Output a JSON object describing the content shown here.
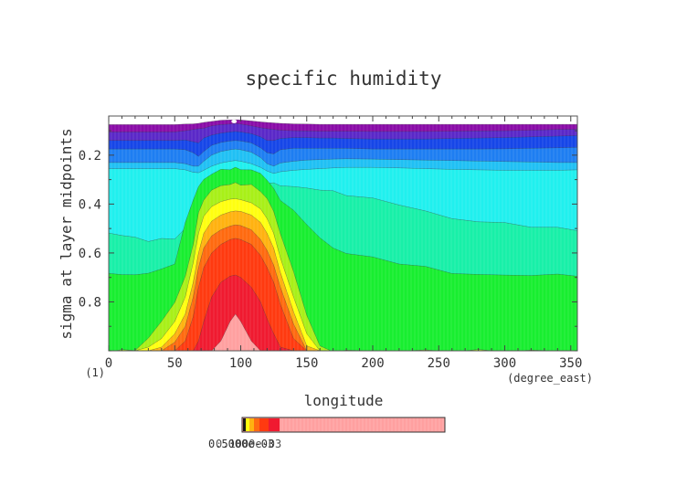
{
  "chart_data": {
    "type": "heatmap",
    "plot_style": "filled contour",
    "title": "specific humidity",
    "xlabel": "longitude",
    "x_units": "(degree_east)",
    "ylabel": "sigma at layer midpoints",
    "y_units": "(1)",
    "xlim": [
      0,
      355
    ],
    "ylim": [
      1.0,
      0.04
    ],
    "y_axis_inverted": true,
    "x_ticks": [
      0,
      50,
      100,
      150,
      200,
      250,
      300,
      350
    ],
    "y_ticks": [
      0.2,
      0.4,
      0.6,
      0.8
    ],
    "x_tick_labels": [
      "0",
      "50",
      "100",
      "150",
      "200",
      "250",
      "300",
      "350"
    ],
    "y_tick_labels": [
      "0.2",
      "0.4",
      "0.6",
      "0.8"
    ],
    "colorbar_text": "0.5000e-03",
    "colorbar_text_overprint": "0.1000e-03",
    "levels_color_order_low_to_high": [
      "#ffffff",
      "#8a0ca8",
      "#5a28c8",
      "#1646e8",
      "#1e7ef2",
      "#20c0f4",
      "#20f0ee",
      "#18f0a8",
      "#18ee30",
      "#a8f018",
      "#ffff10",
      "#ffb210",
      "#ff6a10",
      "#ff3a10",
      "#f01a30",
      "#ffa0a0"
    ],
    "colorbar_swatches": [
      "#1a1a1a",
      "#ffff10",
      "#ffb210",
      "#ff6a10",
      "#ff3a10",
      "#f01a30"
    ],
    "colorbar_high_color": "#ffa0a0",
    "contour_band_tops_sigma": {
      "x": [
        0,
        10,
        20,
        30,
        40,
        50,
        58,
        64,
        68,
        72,
        78,
        85,
        92,
        96,
        100,
        108,
        115,
        120,
        125,
        130,
        140,
        150,
        160,
        170,
        180,
        200,
        220,
        240,
        260,
        280,
        300,
        320,
        340,
        355
      ],
      "bands": [
        {
          "color": "#8a0ca8",
          "top": [
            0.075,
            0.075,
            0.075,
            0.075,
            0.075,
            0.075,
            0.073,
            0.072,
            0.07,
            0.066,
            0.062,
            0.057,
            0.056,
            0.055,
            0.056,
            0.06,
            0.064,
            0.066,
            0.068,
            0.07,
            0.072,
            0.073,
            0.074,
            0.074,
            0.074,
            0.074,
            0.074,
            0.074,
            0.074,
            0.074,
            0.074,
            0.074,
            0.074,
            0.074
          ]
        },
        {
          "color": "#5a28c8",
          "top": [
            0.105,
            0.105,
            0.105,
            0.105,
            0.105,
            0.105,
            0.1,
            0.095,
            0.092,
            0.09,
            0.08,
            0.075,
            0.073,
            0.07,
            0.073,
            0.08,
            0.088,
            0.092,
            0.095,
            0.098,
            0.1,
            0.101,
            0.102,
            0.102,
            0.102,
            0.103,
            0.103,
            0.103,
            0.102,
            0.101,
            0.1,
            0.098,
            0.095,
            0.094
          ]
        },
        {
          "color": "#1646e8",
          "top": [
            0.14,
            0.14,
            0.14,
            0.14,
            0.14,
            0.14,
            0.138,
            0.145,
            0.15,
            0.13,
            0.118,
            0.11,
            0.105,
            0.103,
            0.105,
            0.112,
            0.125,
            0.14,
            0.14,
            0.132,
            0.128,
            0.128,
            0.13,
            0.13,
            0.132,
            0.134,
            0.134,
            0.134,
            0.132,
            0.13,
            0.128,
            0.125,
            0.122,
            0.12
          ]
        },
        {
          "color": "#1e7ef2",
          "top": [
            0.175,
            0.175,
            0.175,
            0.175,
            0.175,
            0.175,
            0.178,
            0.19,
            0.205,
            0.185,
            0.16,
            0.148,
            0.142,
            0.14,
            0.142,
            0.15,
            0.17,
            0.19,
            0.195,
            0.178,
            0.172,
            0.172,
            0.172,
            0.172,
            0.172,
            0.175,
            0.175,
            0.175,
            0.175,
            0.175,
            0.174,
            0.172,
            0.17,
            0.168
          ]
        },
        {
          "color": "#20c0f4",
          "top": [
            0.23,
            0.23,
            0.23,
            0.23,
            0.23,
            0.23,
            0.235,
            0.245,
            0.245,
            0.225,
            0.2,
            0.185,
            0.178,
            0.175,
            0.178,
            0.188,
            0.21,
            0.235,
            0.245,
            0.232,
            0.225,
            0.22,
            0.218,
            0.216,
            0.215,
            0.216,
            0.218,
            0.22,
            0.222,
            0.224,
            0.226,
            0.228,
            0.23,
            0.23
          ]
        },
        {
          "color": "#20f0ee",
          "top": [
            0.255,
            0.255,
            0.255,
            0.255,
            0.255,
            0.255,
            0.26,
            0.27,
            0.272,
            0.262,
            0.245,
            0.232,
            0.225,
            0.222,
            0.225,
            0.235,
            0.25,
            0.265,
            0.275,
            0.268,
            0.262,
            0.258,
            0.255,
            0.252,
            0.25,
            0.25,
            0.252,
            0.255,
            0.258,
            0.26,
            0.262,
            0.262,
            0.262,
            0.26
          ]
        },
        {
          "color": "#18f0a8",
          "top": [
            0.52,
            0.525,
            0.54,
            0.548,
            0.545,
            0.54,
            0.5,
            0.45,
            0.36,
            0.32,
            0.295,
            0.285,
            0.28,
            0.28,
            0.282,
            0.288,
            0.298,
            0.31,
            0.318,
            0.322,
            0.33,
            0.335,
            0.34,
            0.35,
            0.36,
            0.38,
            0.4,
            0.43,
            0.46,
            0.47,
            0.48,
            0.49,
            0.5,
            0.505
          ]
        },
        {
          "color": "#18ee30",
          "top": [
            0.68,
            0.69,
            0.69,
            0.68,
            0.67,
            0.64,
            0.48,
            0.38,
            0.33,
            0.3,
            0.275,
            0.262,
            0.255,
            0.254,
            0.256,
            0.262,
            0.275,
            0.3,
            0.34,
            0.38,
            0.43,
            0.48,
            0.54,
            0.58,
            0.6,
            0.62,
            0.64,
            0.66,
            0.68,
            0.69,
            0.69,
            0.69,
            0.69,
            0.69
          ]
        },
        {
          "color": "#a8f018",
          "top": [
            1.0,
            1.0,
            0.995,
            0.95,
            0.88,
            0.8,
            0.7,
            0.56,
            0.44,
            0.38,
            0.345,
            0.325,
            0.318,
            0.316,
            0.318,
            0.325,
            0.345,
            0.38,
            0.43,
            0.52,
            0.68,
            0.85,
            0.985,
            1.0,
            1.0,
            1.0,
            1.0,
            1.0,
            1.0,
            1.0,
            1.0,
            1.0,
            1.0,
            1.0
          ]
        },
        {
          "color": "#ffff10",
          "top": [
            1.0,
            1.0,
            1.0,
            0.985,
            0.95,
            0.88,
            0.78,
            0.64,
            0.52,
            0.45,
            0.41,
            0.39,
            0.38,
            0.378,
            0.382,
            0.395,
            0.42,
            0.46,
            0.52,
            0.62,
            0.78,
            0.93,
            1.0,
            1.0,
            1.0,
            1.0,
            1.0,
            1.0,
            1.0,
            1.0,
            1.0,
            1.0,
            1.0,
            1.0
          ]
        },
        {
          "color": "#ffb210",
          "top": [
            1.0,
            1.0,
            1.0,
            1.0,
            0.985,
            0.93,
            0.85,
            0.72,
            0.6,
            0.52,
            0.47,
            0.445,
            0.432,
            0.428,
            0.43,
            0.445,
            0.475,
            0.52,
            0.58,
            0.68,
            0.84,
            0.98,
            1.0,
            1.0,
            1.0,
            1.0,
            1.0,
            1.0,
            1.0,
            1.0,
            1.0,
            1.0,
            1.0,
            1.0
          ]
        },
        {
          "color": "#ff6a10",
          "top": [
            1.0,
            1.0,
            1.0,
            1.0,
            1.0,
            0.965,
            0.9,
            0.78,
            0.66,
            0.58,
            0.53,
            0.505,
            0.49,
            0.485,
            0.488,
            0.505,
            0.545,
            0.59,
            0.65,
            0.74,
            0.89,
            1.0,
            1.0,
            1.0,
            1.0,
            1.0,
            1.0,
            1.0,
            1.0,
            1.0,
            1.0,
            1.0,
            1.0,
            1.0
          ]
        },
        {
          "color": "#ff3a10",
          "top": [
            1.0,
            1.0,
            1.0,
            1.0,
            1.0,
            1.0,
            0.96,
            0.86,
            0.74,
            0.66,
            0.6,
            0.565,
            0.545,
            0.54,
            0.545,
            0.565,
            0.61,
            0.66,
            0.72,
            0.81,
            0.95,
            1.0,
            1.0,
            1.0,
            1.0,
            1.0,
            1.0,
            1.0,
            1.0,
            1.0,
            1.0,
            1.0,
            1.0,
            1.0
          ]
        },
        {
          "color": "#f01a30",
          "top": [
            1.0,
            1.0,
            1.0,
            1.0,
            1.0,
            1.0,
            1.0,
            1.0,
            0.96,
            0.88,
            0.78,
            0.72,
            0.695,
            0.69,
            0.7,
            0.74,
            0.8,
            0.87,
            0.93,
            0.985,
            1.0,
            1.0,
            1.0,
            1.0,
            1.0,
            1.0,
            1.0,
            1.0,
            1.0,
            1.0,
            1.0,
            1.0,
            1.0,
            1.0
          ]
        },
        {
          "color": "#ffa0a0",
          "top": [
            1.0,
            1.0,
            1.0,
            1.0,
            1.0,
            1.0,
            1.0,
            1.0,
            1.0,
            1.0,
            1.0,
            0.96,
            0.88,
            0.85,
            0.88,
            0.96,
            1.0,
            1.0,
            1.0,
            1.0,
            1.0,
            1.0,
            1.0,
            1.0,
            1.0,
            1.0,
            1.0,
            1.0,
            1.0,
            1.0,
            1.0,
            1.0,
            1.0,
            1.0
          ]
        }
      ]
    }
  }
}
